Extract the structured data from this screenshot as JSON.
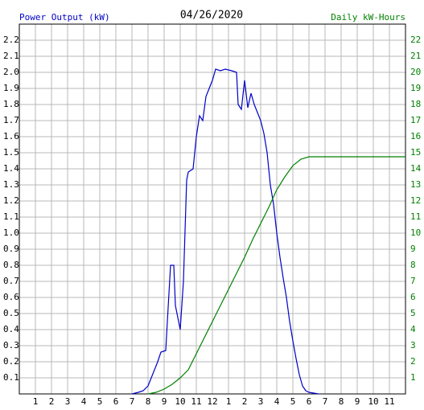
{
  "chart_data": {
    "type": "line",
    "title": "04/26/2020",
    "y_label": "Power Output (kW)",
    "y2_label": "Daily kW-Hours",
    "xlim": [
      0,
      24
    ],
    "xticks": [
      1,
      2,
      3,
      4,
      5,
      6,
      7,
      8,
      9,
      10,
      11,
      12,
      {
        "value": 13,
        "label": "1"
      },
      {
        "value": 14,
        "label": "2"
      },
      {
        "value": 15,
        "label": "3"
      },
      {
        "value": 16,
        "label": "4"
      },
      {
        "value": 17,
        "label": "5"
      },
      {
        "value": 18,
        "label": "6"
      },
      {
        "value": 19,
        "label": "7"
      },
      {
        "value": 20,
        "label": "8"
      },
      {
        "value": 21,
        "label": "9"
      },
      {
        "value": 22,
        "label": "10"
      },
      {
        "value": 23,
        "label": "11"
      }
    ],
    "ylim": [
      0,
      2.3
    ],
    "yticks": [
      0.1,
      0.2,
      0.3,
      0.4,
      0.5,
      0.6,
      0.7,
      0.8,
      0.9,
      {
        "value": 1,
        "label": "1.0"
      },
      1.1,
      1.2,
      1.3,
      1.4,
      1.5,
      1.6,
      1.7,
      1.8,
      1.9,
      {
        "value": 2,
        "label": "2.0"
      },
      2.1,
      2.2
    ],
    "y2lim": [
      0,
      23
    ],
    "y2ticks": [
      1,
      2,
      3,
      4,
      5,
      6,
      7,
      8,
      9,
      10,
      11,
      12,
      13,
      14,
      15,
      16,
      17,
      18,
      19,
      20,
      21,
      22
    ],
    "grid": true,
    "series": [
      {
        "name": "Power Output (kW)",
        "color": "#0000c8",
        "x": [
          7.0,
          7.4,
          7.7,
          8.0,
          8.2,
          8.4,
          8.6,
          8.8,
          9.1,
          9.2,
          9.4,
          9.6,
          9.7,
          9.9,
          10.0,
          10.2,
          10.4,
          10.5,
          10.8,
          11.0,
          11.2,
          11.4,
          11.6,
          11.8,
          12.0,
          12.2,
          12.5,
          12.8,
          13.2,
          13.5,
          13.6,
          13.8,
          14.0,
          14.2,
          14.4,
          14.6,
          14.8,
          15.0,
          15.2,
          15.4,
          15.6,
          15.8,
          16.0,
          16.2,
          16.4,
          16.6,
          16.8,
          17.0,
          17.2,
          17.4,
          17.6,
          17.8,
          18.0,
          18.6
        ],
        "values": [
          0,
          0.01,
          0.02,
          0.05,
          0.1,
          0.15,
          0.2,
          0.26,
          0.27,
          0.45,
          0.8,
          0.8,
          0.55,
          0.45,
          0.4,
          0.7,
          1.33,
          1.38,
          1.4,
          1.6,
          1.73,
          1.7,
          1.85,
          1.9,
          1.95,
          2.02,
          2.01,
          2.02,
          2.01,
          2.0,
          1.8,
          1.77,
          1.95,
          1.78,
          1.87,
          1.8,
          1.75,
          1.7,
          1.62,
          1.5,
          1.3,
          1.18,
          1.0,
          0.85,
          0.72,
          0.6,
          0.45,
          0.33,
          0.22,
          0.12,
          0.05,
          0.02,
          0.01,
          0
        ]
      },
      {
        "name": "Daily kW-Hours",
        "color": "#008000",
        "axis": "y2",
        "x": [
          8.0,
          8.5,
          9.0,
          9.5,
          10.0,
          10.5,
          11.0,
          11.5,
          12.0,
          12.5,
          13.0,
          13.5,
          14.0,
          14.5,
          15.0,
          15.5,
          16.0,
          16.5,
          17.0,
          17.5,
          18.0,
          24.0
        ],
        "values": [
          0,
          0.1,
          0.3,
          0.6,
          1.0,
          1.5,
          2.5,
          3.5,
          4.5,
          5.5,
          6.5,
          7.5,
          8.5,
          9.6,
          10.6,
          11.6,
          12.7,
          13.5,
          14.2,
          14.6,
          14.75,
          14.75
        ]
      }
    ]
  }
}
